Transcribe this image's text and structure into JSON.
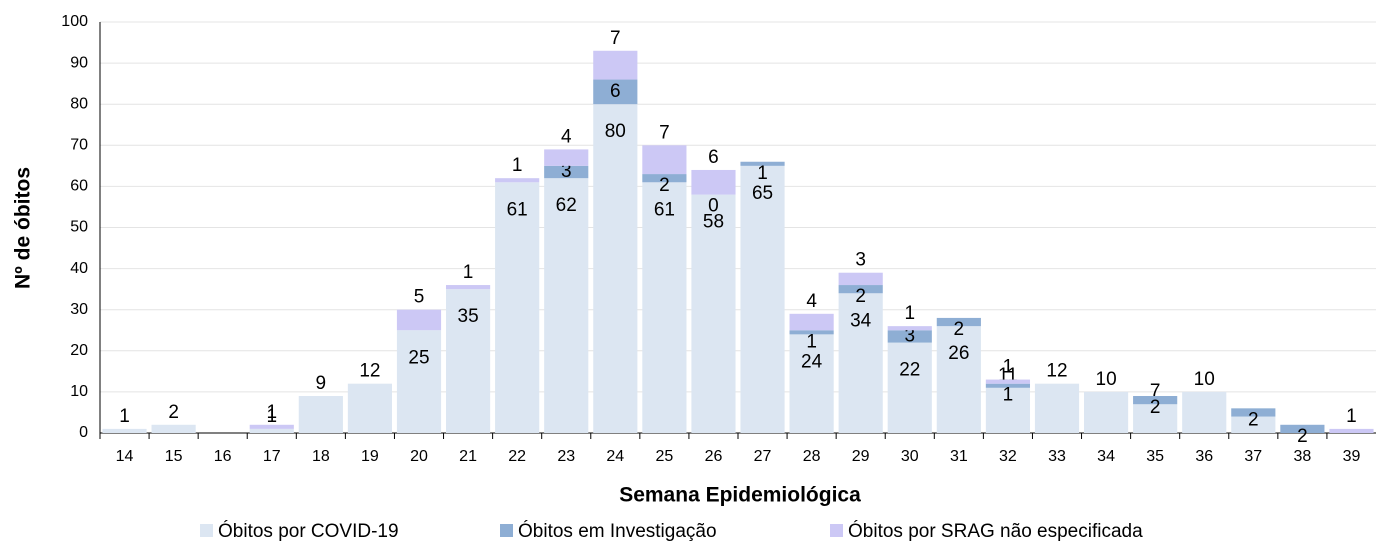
{
  "chart_data": {
    "type": "stacked-bar",
    "x_label": "Semana Epidemiológica",
    "y_label": "Nº de óbitos",
    "categories": [
      "14",
      "15",
      "16",
      "17",
      "18",
      "19",
      "20",
      "21",
      "22",
      "23",
      "24",
      "25",
      "26",
      "27",
      "28",
      "29",
      "30",
      "31",
      "32",
      "33",
      "34",
      "35",
      "36",
      "37",
      "38",
      "39"
    ],
    "series": [
      {
        "name": "Óbitos por COVID-19",
        "color": "#dce6f2",
        "values": [
          1,
          2,
          0,
          1,
          9,
          12,
          25,
          35,
          61,
          62,
          80,
          61,
          58,
          65,
          24,
          34,
          22,
          26,
          11,
          12,
          10,
          7,
          10,
          4,
          0,
          0
        ],
        "value_labels": [
          "1",
          "2",
          null,
          "1",
          "9",
          "12",
          "25",
          "35",
          "61",
          "62",
          "80",
          "61",
          "58",
          "65",
          "24",
          "34",
          "22",
          "26",
          "11",
          "12",
          "10",
          "7",
          "10",
          null,
          null,
          null
        ]
      },
      {
        "name": "Óbitos em Investigação",
        "color": "#8eaed4",
        "values": [
          0,
          0,
          0,
          0,
          0,
          0,
          0,
          0,
          0,
          3,
          6,
          2,
          0,
          1,
          1,
          2,
          3,
          2,
          1,
          0,
          0,
          2,
          0,
          2,
          2,
          0
        ],
        "value_labels": [
          null,
          null,
          null,
          null,
          null,
          null,
          null,
          null,
          null,
          "3",
          "6",
          "2",
          "0",
          "1",
          "1",
          "2",
          "3",
          "2",
          "1",
          null,
          null,
          "2",
          null,
          "2",
          "2",
          null
        ]
      },
      {
        "name": "Óbitos por SRAG não especificada",
        "color": "#ccc8f5",
        "values": [
          0,
          0,
          0,
          1,
          0,
          0,
          5,
          1,
          1,
          4,
          7,
          7,
          6,
          0,
          4,
          3,
          1,
          0,
          1,
          0,
          0,
          0,
          0,
          0,
          0,
          1
        ],
        "value_labels": [
          null,
          null,
          null,
          "1",
          null,
          null,
          "5",
          "1",
          "1",
          "4",
          "7",
          "7",
          "6",
          null,
          "4",
          "3",
          "1",
          null,
          "1",
          null,
          null,
          null,
          null,
          null,
          null,
          "1"
        ]
      }
    ],
    "ylim": [
      0,
      100
    ],
    "yticks": [
      0,
      10,
      20,
      30,
      40,
      50,
      60,
      70,
      80,
      90,
      100
    ],
    "grid": true
  }
}
